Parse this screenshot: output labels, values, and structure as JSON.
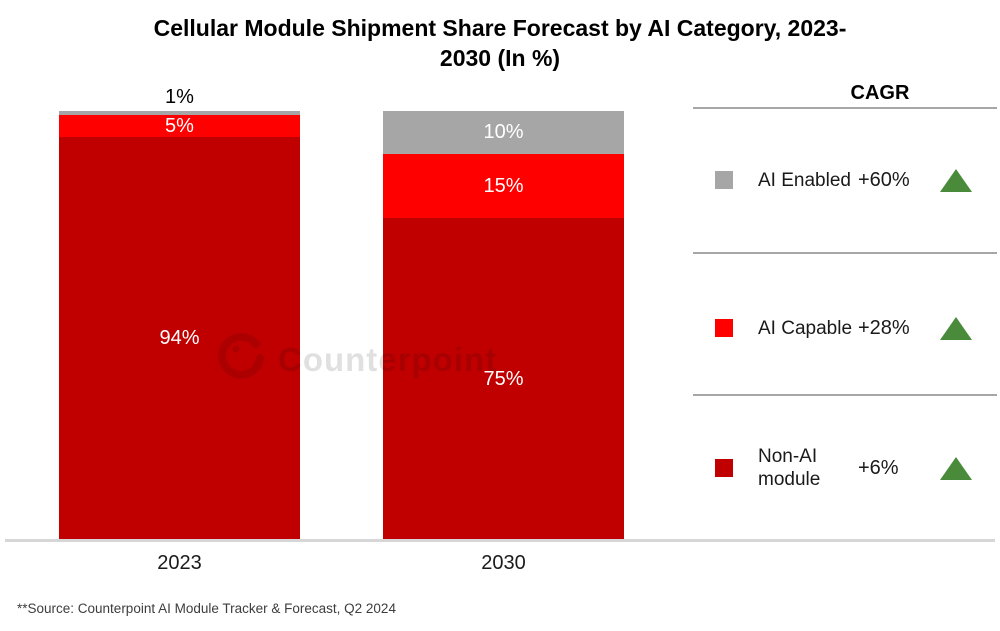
{
  "title": {
    "line1": "Cellular Module Shipment Share Forecast by AI Category, 2023-",
    "line2": "2030 (In %)"
  },
  "watermark": {
    "text": "Counterpoint",
    "logo_icon": "counterpoint-logo-icon"
  },
  "source": "**Source: Counterpoint AI Module Tracker & Forecast, Q2 2024",
  "legend": {
    "header": "CAGR",
    "trend_icon": "up-triangle-icon",
    "trend_color": "#4a8b3b",
    "rows": [
      {
        "label": "AI Enabled",
        "cagr": "+60%",
        "color": "#a6a6a6"
      },
      {
        "label": "AI Capable",
        "cagr": "+28%",
        "color": "#ff0000"
      },
      {
        "label": "Non-AI module",
        "cagr": "+6%",
        "color": "#c00000"
      }
    ]
  },
  "chart_data": {
    "type": "bar",
    "stacked": true,
    "title": "Cellular Module Shipment Share Forecast by AI Category, 2023-2030 (In %)",
    "unit": "%",
    "ylim": [
      0,
      100
    ],
    "grid": false,
    "legend_position": "right",
    "categories": [
      "2023",
      "2030"
    ],
    "series": [
      {
        "name": "AI Enabled",
        "values": [
          1,
          10
        ],
        "color": "#a6a6a6",
        "cagr": "+60%"
      },
      {
        "name": "AI Capable",
        "values": [
          5,
          15
        ],
        "color": "#ff0000",
        "cagr": "+28%"
      },
      {
        "name": "Non-AI module",
        "values": [
          94,
          75
        ],
        "color": "#c00000",
        "cagr": "+6%"
      }
    ],
    "colors": {
      "axis_line": "#d6d6d6",
      "divider": "#a6a6a6",
      "trend_up": "#4a8b3b"
    }
  }
}
